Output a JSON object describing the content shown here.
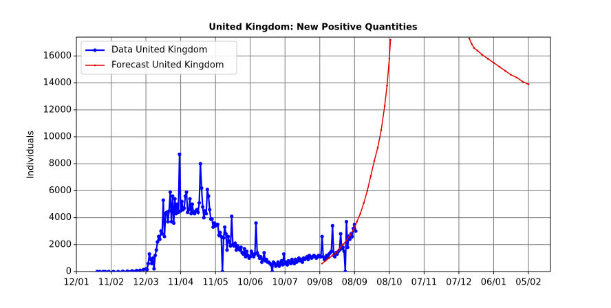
{
  "chart_data": {
    "type": "line",
    "title": "United Kingdom: New Positive Quantities",
    "y_label": "Individuals",
    "xlim": [
      0,
      409
    ],
    "ylim": [
      0,
      17400
    ],
    "xticks": [
      {
        "value": 0,
        "label": "12/01"
      },
      {
        "value": 30,
        "label": "11/02"
      },
      {
        "value": 60,
        "label": "12/03"
      },
      {
        "value": 90,
        "label": "11/04"
      },
      {
        "value": 120,
        "label": "11/05"
      },
      {
        "value": 150,
        "label": "10/06"
      },
      {
        "value": 180,
        "label": "10/07"
      },
      {
        "value": 210,
        "label": "09/08"
      },
      {
        "value": 240,
        "label": "08/09"
      },
      {
        "value": 270,
        "label": "08/10"
      },
      {
        "value": 300,
        "label": "07/11"
      },
      {
        "value": 330,
        "label": "07/12"
      },
      {
        "value": 360,
        "label": "06/01"
      },
      {
        "value": 390,
        "label": "05/02"
      }
    ],
    "yticks": [
      0,
      2000,
      4000,
      6000,
      8000,
      10000,
      12000,
      14000,
      16000
    ],
    "grid": true,
    "legend": "upper left",
    "series": [
      {
        "name": "Data United Kingdom",
        "color": "#0000ff",
        "marker": "large",
        "x": [
          18,
          20,
          23,
          25,
          28,
          32,
          36,
          40,
          44,
          48,
          52,
          55,
          58,
          60,
          61,
          62,
          63,
          64,
          65,
          66,
          67,
          68,
          69,
          70,
          71,
          72,
          73,
          74,
          75,
          76,
          77,
          78,
          79,
          80,
          81,
          82,
          83,
          84,
          85,
          86,
          87,
          88,
          89,
          90,
          91,
          92,
          93,
          94,
          95,
          96,
          97,
          98,
          99,
          100,
          101,
          102,
          103,
          104,
          105,
          106,
          107,
          108,
          109,
          110,
          111,
          112,
          113,
          114,
          115,
          116,
          117,
          118,
          119,
          120,
          121,
          122,
          123,
          124,
          125,
          126,
          127,
          128,
          129,
          130,
          131,
          132,
          133,
          134,
          135,
          136,
          137,
          138,
          139,
          140,
          141,
          142,
          143,
          144,
          145,
          146,
          147,
          148,
          149,
          150,
          151,
          152,
          153,
          154,
          155,
          156,
          157,
          158,
          159,
          160,
          161,
          162,
          163,
          164,
          165,
          166,
          167,
          168,
          169,
          170,
          171,
          172,
          173,
          174,
          175,
          176,
          177,
          178,
          179,
          180,
          181,
          182,
          183,
          184,
          185,
          186,
          187,
          188,
          189,
          190,
          191,
          192,
          193,
          194,
          195,
          196,
          197,
          198,
          199,
          200,
          201,
          202,
          203,
          204,
          205,
          206,
          207,
          208,
          209,
          210,
          211,
          212,
          213,
          214,
          215,
          216,
          217,
          218,
          219,
          220,
          221,
          222,
          223,
          224,
          225,
          226,
          227,
          228,
          229,
          230,
          231,
          232,
          233,
          234,
          235,
          236,
          237,
          238,
          239,
          240,
          241
        ],
        "values": [
          0,
          0,
          0,
          0,
          0,
          0,
          0,
          20,
          30,
          50,
          80,
          100,
          150,
          200,
          150,
          600,
          1300,
          900,
          600,
          1000,
          200,
          1200,
          1600,
          2200,
          2600,
          2400,
          3000,
          2800,
          5300,
          2600,
          4300,
          4400,
          3700,
          4500,
          5900,
          3700,
          5600,
          3600,
          5400,
          4300,
          5000,
          4400,
          8700,
          4500,
          5200,
          4600,
          4700,
          5600,
          5900,
          4400,
          4600,
          5400,
          4300,
          5000,
          4400,
          4300,
          4500,
          4600,
          4400,
          5100,
          8000,
          6200,
          4800,
          4000,
          4500,
          4300,
          6100,
          5600,
          4600,
          3900,
          3900,
          3300,
          3600,
          3400,
          3500,
          3500,
          2700,
          2900,
          2600,
          0,
          2500,
          3300,
          2800,
          1600,
          2600,
          2200,
          1900,
          4100,
          2000,
          1900,
          2100,
          1600,
          1900,
          1700,
          1600,
          1800,
          1400,
          1300,
          1700,
          1100,
          1500,
          1200,
          1000,
          1100,
          1500,
          1300,
          1100,
          1300,
          3600,
          1400,
          1200,
          1000,
          1100,
          700,
          900,
          1400,
          800,
          900,
          700,
          700,
          600,
          500,
          0,
          700,
          600,
          400,
          500,
          700,
          400,
          600,
          800,
          500,
          1300,
          600,
          700,
          500,
          800,
          700,
          600,
          900,
          700,
          600,
          900,
          700,
          800,
          1000,
          800,
          900,
          700,
          1000,
          900,
          1000,
          1100,
          900,
          1200,
          1100,
          1000,
          1100,
          1200,
          1100,
          1000,
          1100,
          1200,
          1100,
          1100,
          2600,
          1100,
          900,
          1000,
          1200,
          1100,
          1300,
          1400,
          1500,
          3400,
          1200,
          1100,
          1400,
          1300,
          1500,
          1600,
          2800,
          1700,
          1800,
          1500,
          0,
          3700,
          1800,
          2600,
          2400,
          2800,
          2600,
          3200,
          3500,
          3000
        ]
      },
      {
        "name": "Forecast United Kingdom",
        "color": "#dd0000",
        "marker": "small",
        "x": [
          212,
          215,
          218,
          221,
          224,
          227,
          230,
          233,
          236,
          239,
          242,
          245,
          248,
          251,
          254,
          257,
          260,
          263,
          266,
          268,
          270,
          271,
          300,
          339,
          341,
          343,
          346,
          350,
          355,
          360,
          365,
          370,
          375,
          380,
          385,
          390
        ],
        "values": [
          600,
          800,
          1000,
          1200,
          1400,
          1700,
          2000,
          2300,
          2700,
          3100,
          3700,
          4300,
          5100,
          6000,
          7100,
          8200,
          9200,
          10500,
          12300,
          13800,
          15800,
          17200,
          null,
          17300,
          16900,
          16600,
          16400,
          16100,
          15800,
          15500,
          15200,
          14900,
          14600,
          14400,
          14100,
          13900
        ]
      }
    ]
  }
}
